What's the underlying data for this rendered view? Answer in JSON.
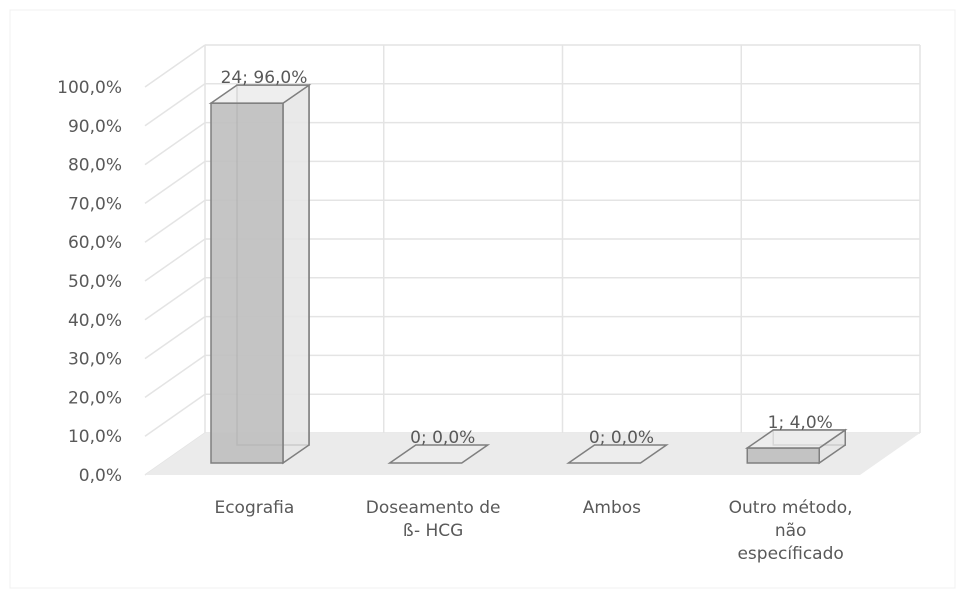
{
  "chart_data": {
    "type": "bar",
    "title": "",
    "xlabel": "",
    "ylabel": "",
    "categories": [
      [
        "Ecografia"
      ],
      [
        "Doseamento de",
        "ß- HCG"
      ],
      [
        "Ambos"
      ],
      [
        "Outro método,",
        "não",
        "específicado"
      ]
    ],
    "values": [
      96.0,
      0.0,
      0.0,
      4.0
    ],
    "counts": [
      24,
      0,
      0,
      1
    ],
    "data_labels": [
      "24; 96,0%",
      "0; 0,0%",
      "0; 0,0%",
      "1; 4,0%"
    ],
    "ylim": [
      0,
      100
    ],
    "y_ticks": [
      0,
      10,
      20,
      30,
      40,
      50,
      60,
      70,
      80,
      90,
      100
    ],
    "y_tick_labels": [
      "0,0%",
      "10,0%",
      "20,0%",
      "30,0%",
      "40,0%",
      "50,0%",
      "60,0%",
      "70,0%",
      "80,0%",
      "90,0%",
      "100,0%"
    ],
    "grid": true,
    "legend": "none",
    "style": "3d-column",
    "colors": {
      "bar_front": "#bfbfbf",
      "bar_side": "#e6e6e6",
      "bar_top": "#eeeeee",
      "bar_stroke": "#7f7f7f",
      "floor": "#ebebeb",
      "grid": "#e4e4e4",
      "text": "#595959"
    }
  }
}
